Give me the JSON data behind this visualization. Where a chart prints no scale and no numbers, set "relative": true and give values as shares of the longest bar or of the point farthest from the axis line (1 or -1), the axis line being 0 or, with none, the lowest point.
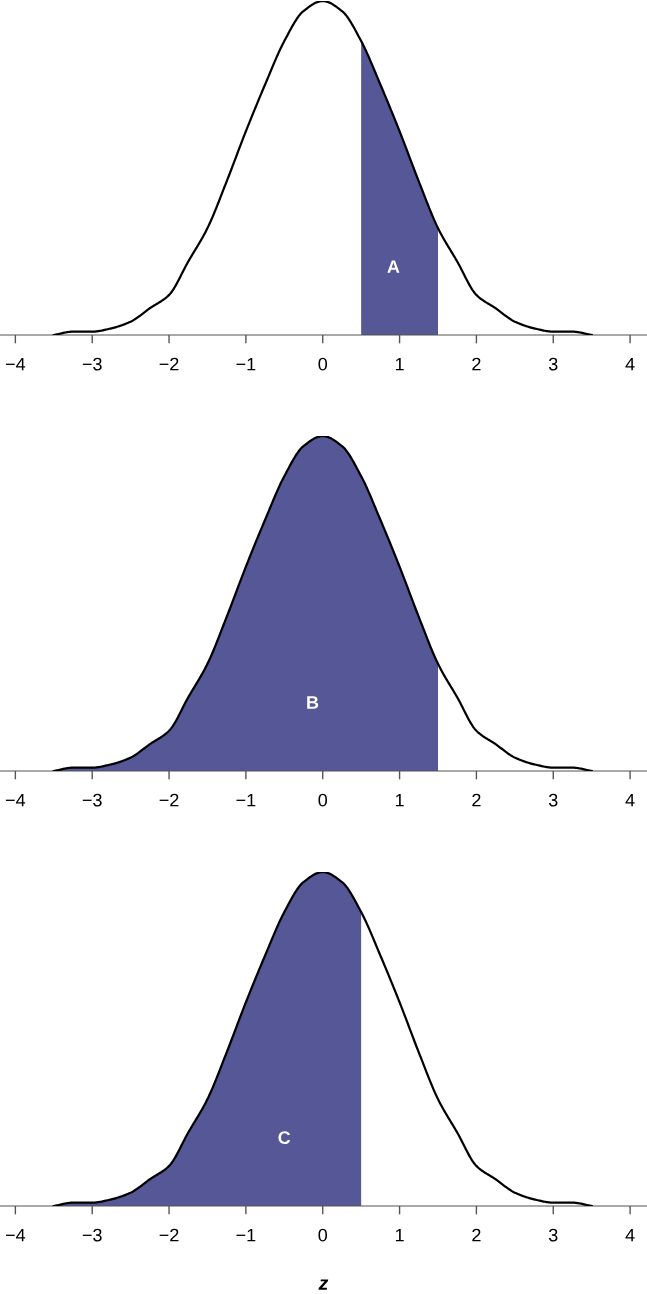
{
  "chart_data": [
    {
      "type": "line",
      "relative": true,
      "tick_labels": "x",
      "grid": false,
      "legend": false,
      "xlim": [
        -4.2,
        4.22
      ],
      "xticks": [
        {
          "value": -4,
          "label": "−4"
        },
        {
          "value": -3,
          "label": "−3"
        },
        {
          "value": -2,
          "label": "−2"
        },
        {
          "value": -1,
          "label": "−1"
        },
        0,
        1,
        2,
        3,
        4
      ],
      "annotations": [
        "A"
      ],
      "series": [
        {
          "type": "area",
          "color": "#555796",
          "x": [
            0.5,
            0.75,
            1,
            1.25,
            1.5
          ],
          "values": [
            0.88,
            0.75,
            0.61,
            0.46,
            0.32
          ]
        },
        {
          "color": "#000000",
          "x": [
            -3.5,
            -3.25,
            -3,
            -2.75,
            -2.5,
            -2.25,
            -2,
            -1.75,
            -1.5,
            -1.25,
            -1,
            -0.75,
            -0.5,
            -0.25,
            0,
            0.25,
            0.5,
            0.75,
            1,
            1.25,
            1.5,
            1.75,
            2,
            2.25,
            2.5,
            2.75,
            3,
            3.25,
            3.5
          ],
          "values": [
            0.0,
            0.01,
            0.01,
            0.02,
            0.04,
            0.08,
            0.12,
            0.22,
            0.32,
            0.46,
            0.61,
            0.75,
            0.88,
            0.97,
            1,
            0.97,
            0.88,
            0.75,
            0.61,
            0.46,
            0.32,
            0.22,
            0.12,
            0.08,
            0.04,
            0.02,
            0.01,
            0.01,
            0.0
          ]
        }
      ]
    },
    {
      "type": "line",
      "relative": true,
      "tick_labels": "x",
      "grid": false,
      "legend": false,
      "xlim": [
        -4.2,
        4.22
      ],
      "xticks": [
        {
          "value": -4,
          "label": "−4"
        },
        {
          "value": -3,
          "label": "−3"
        },
        {
          "value": -2,
          "label": "−2"
        },
        {
          "value": -1,
          "label": "−1"
        },
        0,
        1,
        2,
        3,
        4
      ],
      "annotations": [
        "B"
      ],
      "series": [
        {
          "type": "area",
          "color": "#555796",
          "x": [
            -3.5,
            -3.25,
            -3,
            -2.75,
            -2.5,
            -2.25,
            -2,
            -1.75,
            -1.5,
            -1.25,
            -1,
            -0.75,
            -0.5,
            -0.25,
            0,
            0.25,
            0.5,
            0.75,
            1,
            1.25,
            1.5
          ],
          "values": [
            0.0,
            0.01,
            0.01,
            0.02,
            0.04,
            0.08,
            0.12,
            0.22,
            0.32,
            0.46,
            0.61,
            0.75,
            0.88,
            0.97,
            1,
            0.97,
            0.88,
            0.75,
            0.61,
            0.46,
            0.32
          ]
        },
        {
          "color": "#000000",
          "x": [
            -3.5,
            -3.25,
            -3,
            -2.75,
            -2.5,
            -2.25,
            -2,
            -1.75,
            -1.5,
            -1.25,
            -1,
            -0.75,
            -0.5,
            -0.25,
            0,
            0.25,
            0.5,
            0.75,
            1,
            1.25,
            1.5,
            1.75,
            2,
            2.25,
            2.5,
            2.75,
            3,
            3.25,
            3.5
          ],
          "values": [
            0.0,
            0.01,
            0.01,
            0.02,
            0.04,
            0.08,
            0.12,
            0.22,
            0.32,
            0.46,
            0.61,
            0.75,
            0.88,
            0.97,
            1,
            0.97,
            0.88,
            0.75,
            0.61,
            0.46,
            0.32,
            0.22,
            0.12,
            0.08,
            0.04,
            0.02,
            0.01,
            0.01,
            0.0
          ]
        }
      ]
    },
    {
      "type": "line",
      "relative": true,
      "tick_labels": "x",
      "grid": false,
      "legend": false,
      "xlim": [
        -4.2,
        4.22
      ],
      "xlabel": "z",
      "xticks": [
        {
          "value": -4,
          "label": "−4"
        },
        {
          "value": -3,
          "label": "−3"
        },
        {
          "value": -2,
          "label": "−2"
        },
        {
          "value": -1,
          "label": "−1"
        },
        0,
        1,
        2,
        3,
        4
      ],
      "annotations": [
        "C"
      ],
      "series": [
        {
          "type": "area",
          "color": "#555796",
          "x": [
            -3.5,
            -3.25,
            -3,
            -2.75,
            -2.5,
            -2.25,
            -2,
            -1.75,
            -1.5,
            -1.25,
            -1,
            -0.75,
            -0.5,
            -0.25,
            0,
            0.25,
            0.5
          ],
          "values": [
            0.0,
            0.01,
            0.01,
            0.02,
            0.04,
            0.08,
            0.12,
            0.22,
            0.32,
            0.46,
            0.61,
            0.75,
            0.88,
            0.97,
            1,
            0.97,
            0.88
          ]
        },
        {
          "color": "#000000",
          "x": [
            -3.5,
            -3.25,
            -3,
            -2.75,
            -2.5,
            -2.25,
            -2,
            -1.75,
            -1.5,
            -1.25,
            -1,
            -0.75,
            -0.5,
            -0.25,
            0,
            0.25,
            0.5,
            0.75,
            1,
            1.25,
            1.5,
            1.75,
            2,
            2.25,
            2.5,
            2.75,
            3,
            3.25,
            3.5
          ],
          "values": [
            0.0,
            0.01,
            0.01,
            0.02,
            0.04,
            0.08,
            0.12,
            0.22,
            0.32,
            0.46,
            0.61,
            0.75,
            0.88,
            0.97,
            1,
            0.97,
            0.88,
            0.75,
            0.61,
            0.46,
            0.32,
            0.22,
            0.12,
            0.08,
            0.04,
            0.02,
            0.01,
            0.01,
            0.0
          ]
        }
      ]
    }
  ]
}
